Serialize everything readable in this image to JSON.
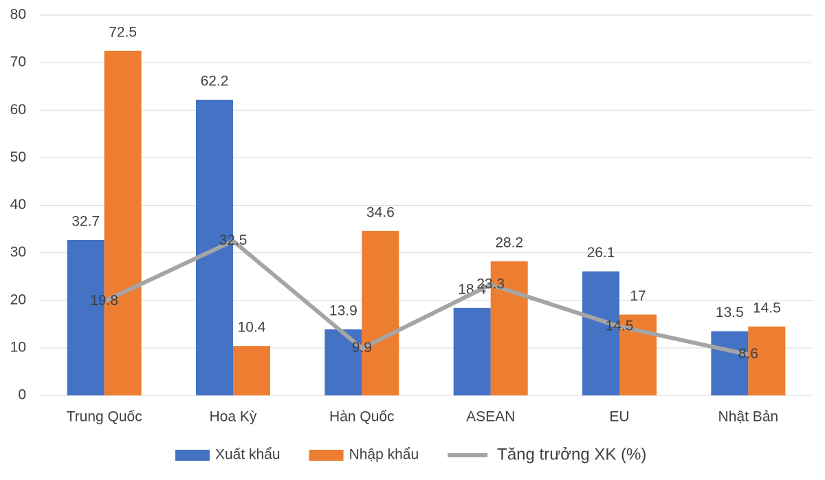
{
  "chart_data": {
    "type": "bar",
    "categories": [
      "Trung Quốc",
      "Hoa Kỳ",
      "Hàn Quốc",
      "ASEAN",
      "EU",
      "Nhật Bản"
    ],
    "series": [
      {
        "name": "Xuất khẩu",
        "type": "bar",
        "color": "#4472c4",
        "values": [
          32.7,
          62.2,
          13.9,
          18.4,
          26.1,
          13.5
        ]
      },
      {
        "name": "Nhập khẩu",
        "type": "bar",
        "color": "#ed7d31",
        "values": [
          72.5,
          10.4,
          34.6,
          28.2,
          17,
          14.5
        ]
      },
      {
        "name": "Tăng trưởng XK (%)",
        "type": "line",
        "color": "#a5a5a5",
        "values": [
          19.8,
          32.5,
          9.9,
          23.3,
          14.5,
          8.6
        ]
      }
    ],
    "ylim": [
      0,
      80
    ],
    "yticks": [
      0,
      10,
      20,
      30,
      40,
      50,
      60,
      70,
      80
    ],
    "grid": true,
    "legend": "bottom"
  }
}
